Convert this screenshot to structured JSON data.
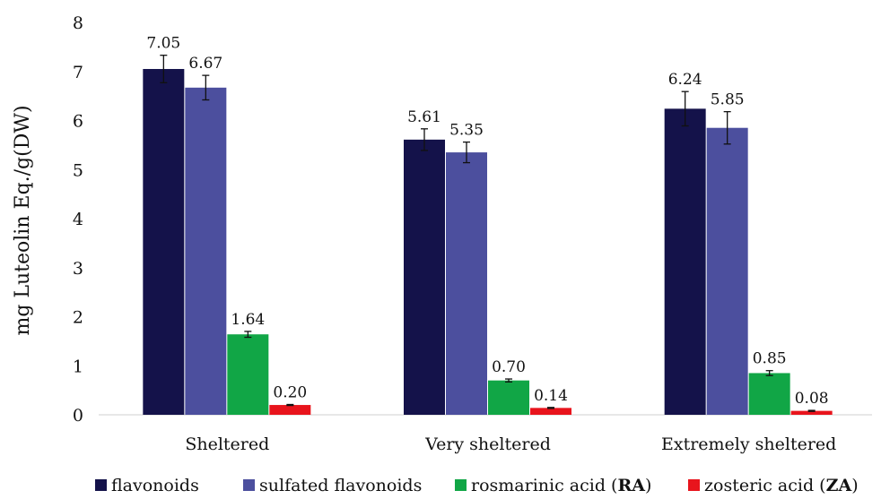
{
  "chart_data": {
    "type": "bar",
    "title": "",
    "xlabel": "",
    "ylabel": "mg Luteolin Eq./g(DW)",
    "ylim": [
      0,
      8
    ],
    "yticks": [
      0,
      1,
      2,
      3,
      4,
      5,
      6,
      7,
      8
    ],
    "grid": false,
    "legend_position": "bottom",
    "categories": [
      "Sheltered",
      "Very sheltered",
      "Extremely sheltered"
    ],
    "series": [
      {
        "name": "flavonoids",
        "color": "#14124a",
        "values": [
          7.05,
          5.61,
          6.24
        ],
        "labels": [
          "7.05",
          "5.61",
          "6.24"
        ],
        "error": [
          0.28,
          0.22,
          0.35
        ]
      },
      {
        "name": "sulfated flavonoids",
        "color": "#4c4f9e",
        "values": [
          6.67,
          5.35,
          5.85
        ],
        "labels": [
          "6.67",
          "5.35",
          "5.85"
        ],
        "error": [
          0.25,
          0.21,
          0.33
        ]
      },
      {
        "name": "rosmarinic acid (RA)",
        "name_parts": [
          "rosmarinic acid (",
          "RA",
          ")"
        ],
        "color": "#11a646",
        "values": [
          1.64,
          0.7,
          0.85
        ],
        "labels": [
          "1.64",
          "0.70",
          "0.85"
        ],
        "error": [
          0.06,
          0.03,
          0.05
        ]
      },
      {
        "name": "zosteric acid (ZA)",
        "name_parts": [
          "zosteric acid (",
          "ZA",
          ")"
        ],
        "color": "#e8141c",
        "values": [
          0.2,
          0.14,
          0.08
        ],
        "labels": [
          "0.20",
          "0.14",
          "0.08"
        ],
        "error": [
          0.01,
          0.01,
          0.01
        ]
      }
    ]
  }
}
